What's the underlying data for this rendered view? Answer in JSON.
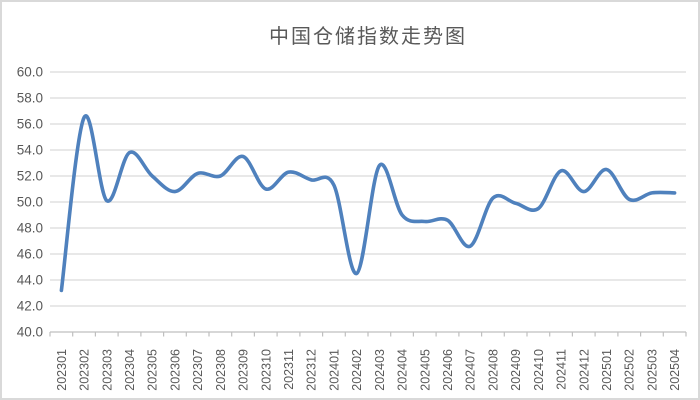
{
  "chart_data": {
    "type": "line",
    "title": "中国仓储指数走势图",
    "categories": [
      "202301",
      "202302",
      "202303",
      "202304",
      "202305",
      "202306",
      "202307",
      "202308",
      "202309",
      "202310",
      "202311",
      "202312",
      "202401",
      "202402",
      "202403",
      "202404",
      "202405",
      "202406",
      "202407",
      "202408",
      "202409",
      "202410",
      "202411",
      "202412",
      "202501",
      "202502",
      "202503",
      "202504"
    ],
    "values": [
      43.2,
      56.5,
      50.1,
      53.8,
      52.0,
      50.8,
      52.2,
      52.0,
      53.5,
      51.0,
      52.3,
      51.7,
      51.3,
      44.5,
      52.8,
      49.0,
      48.5,
      48.6,
      46.6,
      50.3,
      49.9,
      49.5,
      52.4,
      50.8,
      52.5,
      50.2,
      50.7,
      50.7
    ],
    "xlabel": "",
    "ylabel": "",
    "ylim": [
      40.0,
      60.0
    ],
    "y_tick_step": 2.0,
    "y_tick_labels": [
      "60.0",
      "58.0",
      "56.0",
      "54.0",
      "52.0",
      "50.0",
      "48.0",
      "46.0",
      "44.0",
      "42.0",
      "40.0"
    ],
    "grid": "horizontal",
    "legend_position": "none",
    "line_smoothed": true,
    "line_color": "#4F81BD"
  },
  "colors": {
    "background": "#FFFFFF",
    "frame_border": "#D9D9D9",
    "gridline": "#D9D9D9",
    "axis_line": "#BFBFBF",
    "tick_mark": "#BFBFBF",
    "label_text": "#595959",
    "title_text": "#595959"
  }
}
